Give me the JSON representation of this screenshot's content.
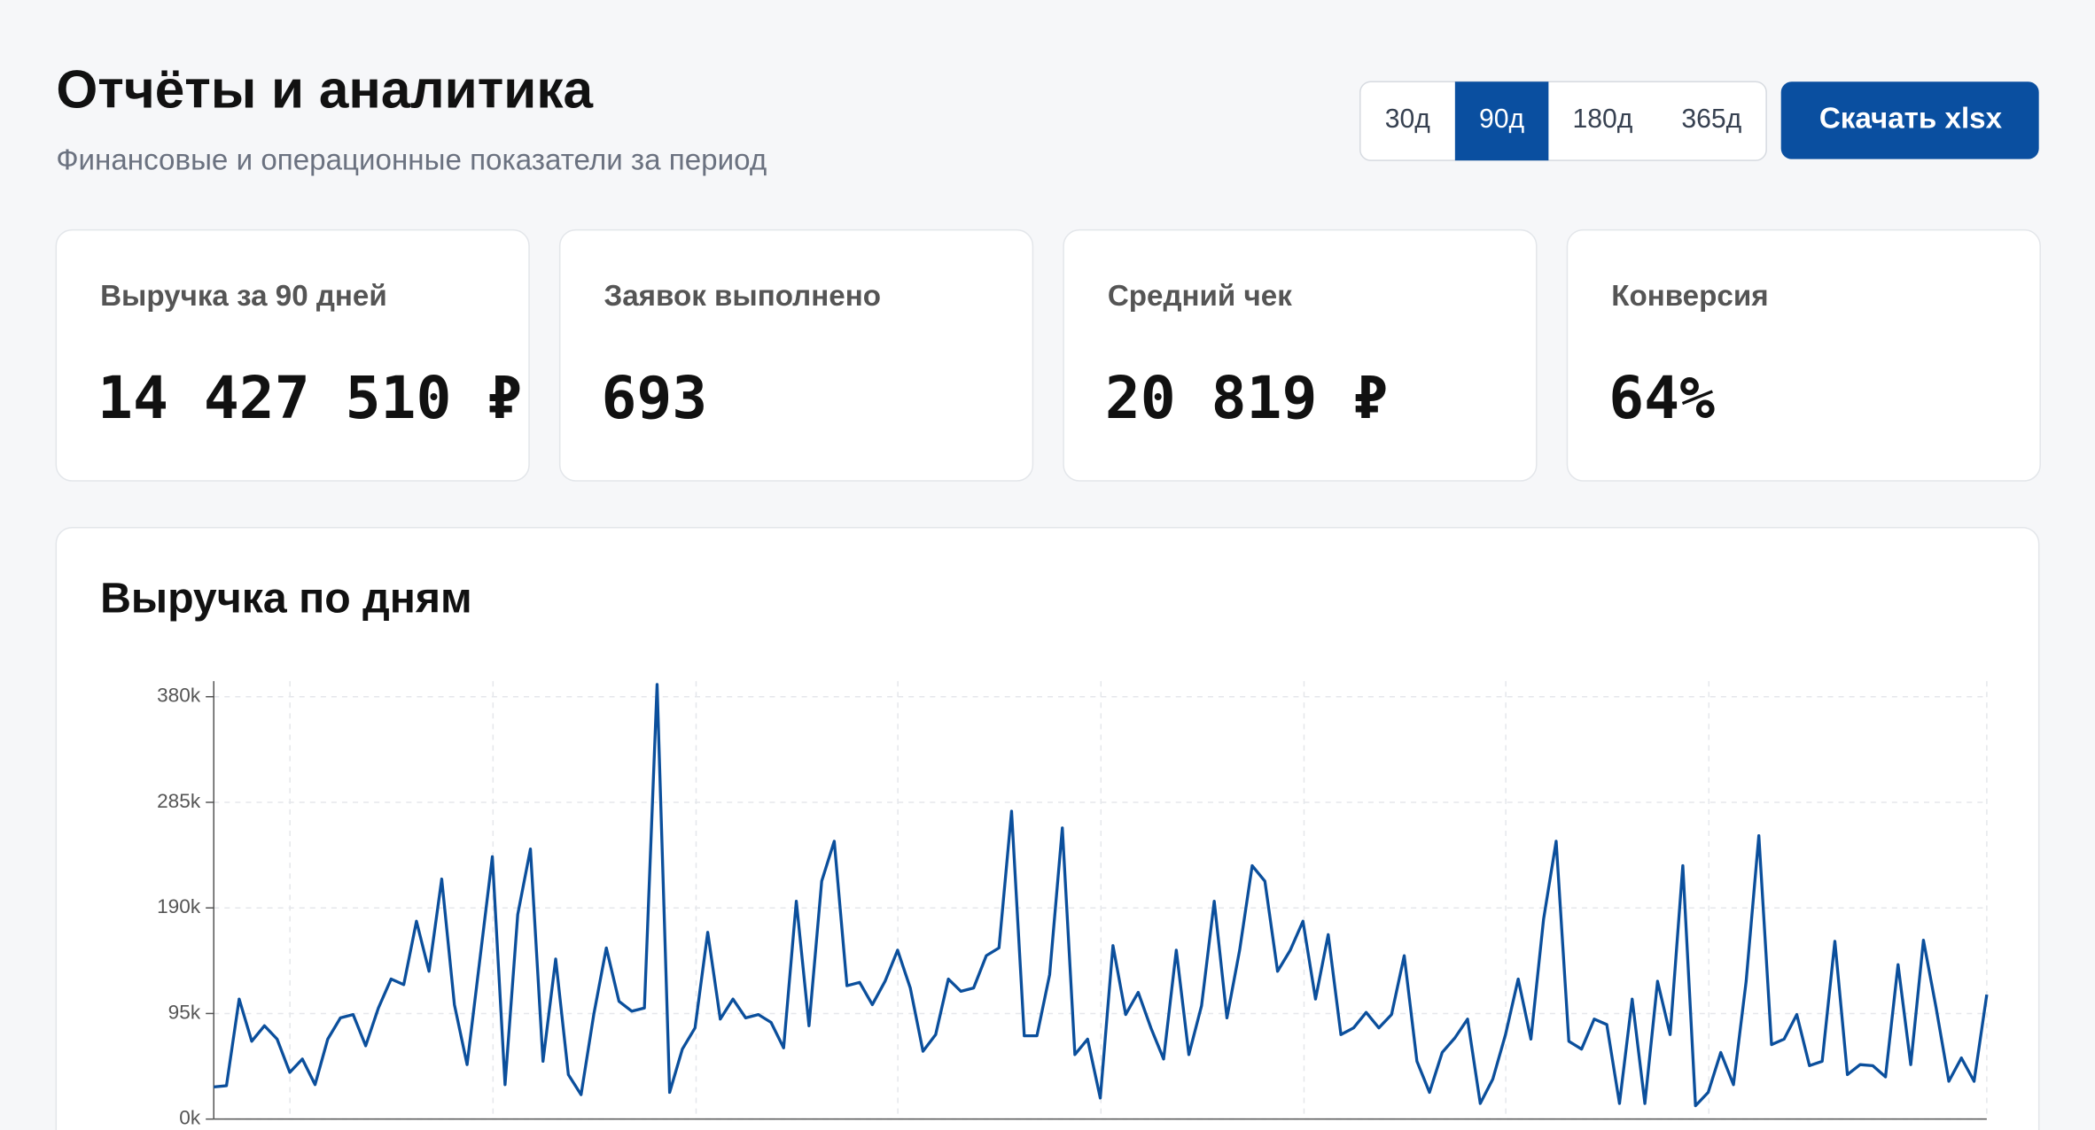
{
  "header": {
    "title": "Отчёты и аналитика",
    "subtitle": "Финансовые и операционные показатели за период"
  },
  "periods": {
    "options": [
      "30д",
      "90д",
      "180д",
      "365д"
    ],
    "active": 1
  },
  "download": "Скачать xlsx",
  "kpis": [
    {
      "label": "Выручка за 90 дней",
      "value": "14 427 510 ₽"
    },
    {
      "label": "Заявок выполнено",
      "value": "693"
    },
    {
      "label": "Средний чек",
      "value": "20 819 ₽"
    },
    {
      "label": "Конверсия",
      "value": "64%"
    }
  ],
  "chart_data": {
    "type": "line",
    "title": "Выручка по дням",
    "color": "#0b4f9c",
    "grid": true,
    "ylim": [
      0,
      394000
    ],
    "yticks": [
      {
        "value": 0,
        "label": "0k"
      },
      {
        "value": 95000,
        "label": "95k"
      },
      {
        "value": 190000,
        "label": "190k"
      },
      {
        "value": 285000,
        "label": "285k"
      },
      {
        "value": 380000,
        "label": "380k"
      }
    ],
    "values": [
      29000,
      30000,
      108000,
      70000,
      84000,
      72000,
      42000,
      54000,
      31000,
      72000,
      91000,
      94000,
      66000,
      100000,
      126000,
      121000,
      178000,
      133000,
      216000,
      103000,
      49000,
      142000,
      236000,
      31000,
      184000,
      243000,
      52000,
      144000,
      40000,
      22000,
      94000,
      154000,
      106000,
      97000,
      100000,
      391000,
      24000,
      63000,
      82000,
      168000,
      90000,
      108000,
      91000,
      94000,
      87000,
      64000,
      196000,
      84000,
      214000,
      250000,
      120000,
      123000,
      103000,
      124000,
      152000,
      118000,
      61000,
      76000,
      126000,
      115000,
      118000,
      147000,
      154000,
      277000,
      75000,
      75000,
      130000,
      262000,
      58000,
      72000,
      19000,
      156000,
      94000,
      114000,
      82000,
      54000,
      152000,
      58000,
      102000,
      196000,
      91000,
      152000,
      228000,
      214000,
      133000,
      152000,
      178000,
      108000,
      166000,
      76000,
      82000,
      96000,
      82000,
      94000,
      147000,
      52000,
      24000,
      60000,
      73000,
      90000,
      14000,
      36000,
      76000,
      126000,
      72000,
      180000,
      250000,
      70000,
      63000,
      90000,
      85000,
      14000,
      108000,
      14000,
      124000,
      76000,
      228000,
      12000,
      24000,
      60000,
      31000,
      124000,
      255000,
      67000,
      72000,
      94000,
      48000,
      52000,
      160000,
      40000,
      49000,
      48000,
      38000,
      139000,
      49000,
      161000,
      100000,
      34000,
      55000,
      34000,
      112000
    ]
  }
}
